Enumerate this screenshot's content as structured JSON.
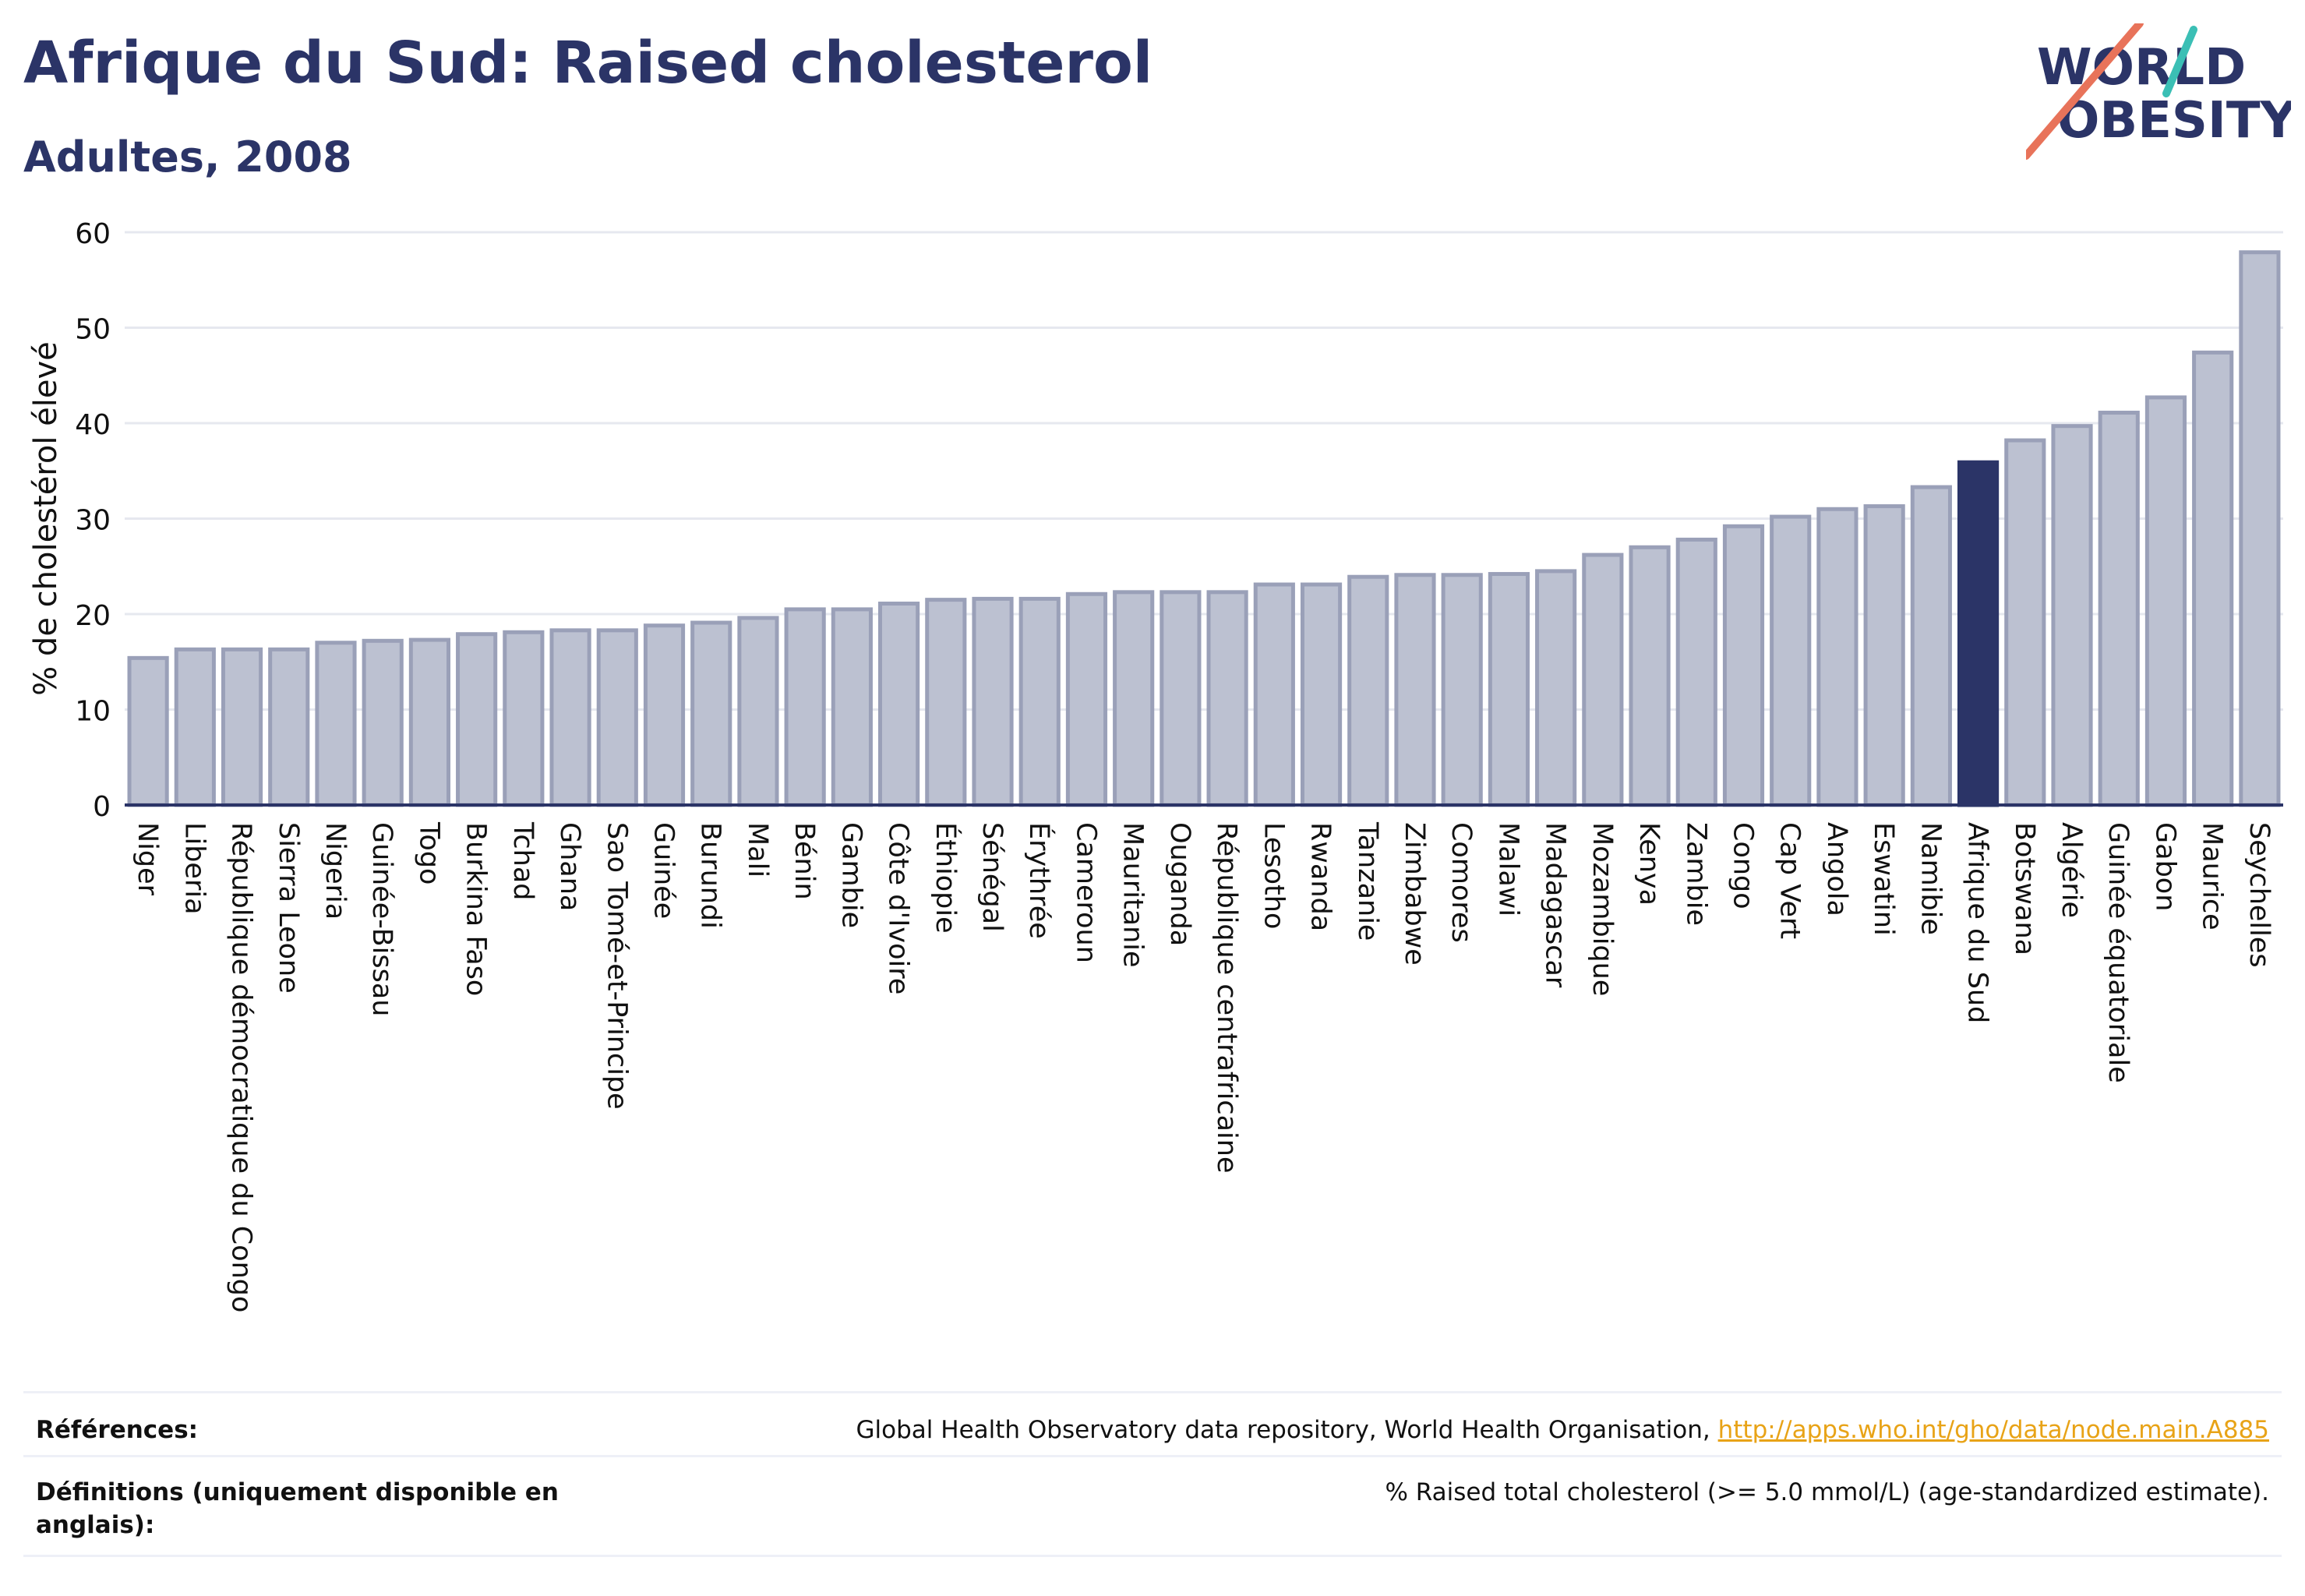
{
  "header": {
    "title": "Afrique du Sud: Raised cholesterol",
    "subtitle": "Adultes, 2008"
  },
  "logo": {
    "line1": "WORLD",
    "line2": "OBESITY"
  },
  "chart_data": {
    "type": "bar",
    "ylabel": "% de cholestérol élevé",
    "xlabel": "",
    "ylim": [
      0,
      60
    ],
    "yticks": [
      0,
      10,
      20,
      30,
      40,
      50,
      60
    ],
    "grid": true,
    "highlight": "Afrique du Sud",
    "colors": {
      "bar": "#bcc1d1",
      "bar_border": "#9aa0b8",
      "highlight": "#2b3467",
      "axis": "#2b3467",
      "grid": "#e6e8ef"
    },
    "categories": [
      "Niger",
      "Liberia",
      "République démocratique du Congo",
      "Sierra Leone",
      "Nigeria",
      "Guinée-Bissau",
      "Togo",
      "Burkina Faso",
      "Tchad",
      "Ghana",
      "Sao Tomé-et-Principe",
      "Guinée",
      "Burundi",
      "Mali",
      "Bénin",
      "Gambie",
      "Côte d'Ivoire",
      "Éthiopie",
      "Sénégal",
      "Érythrée",
      "Cameroun",
      "Mauritanie",
      "Ouganda",
      "République centrafricaine",
      "Lesotho",
      "Rwanda",
      "Tanzanie",
      "Zimbabwe",
      "Comores",
      "Malawi",
      "Madagascar",
      "Mozambique",
      "Kenya",
      "Zambie",
      "Congo",
      "Cap Vert",
      "Angola",
      "Eswatini",
      "Namibie",
      "Afrique du Sud",
      "Botswana",
      "Algérie",
      "Guinée équatoriale",
      "Gabon",
      "Maurice",
      "Seychelles"
    ],
    "values": [
      15.4,
      16.3,
      16.3,
      16.3,
      17.0,
      17.2,
      17.3,
      17.9,
      18.1,
      18.3,
      18.3,
      18.8,
      19.1,
      19.6,
      20.5,
      20.5,
      21.1,
      21.5,
      21.6,
      21.6,
      22.1,
      22.3,
      22.3,
      22.3,
      23.1,
      23.1,
      23.9,
      24.1,
      24.1,
      24.2,
      24.5,
      26.2,
      27.0,
      27.8,
      29.2,
      30.2,
      31.0,
      31.3,
      33.3,
      35.9,
      38.2,
      39.7,
      41.1,
      42.7,
      47.4,
      57.9
    ]
  },
  "footer": {
    "references_label": "Références:",
    "references_text": "Global Health Observatory data repository, World Health Organisation, ",
    "references_link": "http://apps.who.int/gho/data/node.main.A885",
    "definitions_label": "Définitions (uniquement disponible en anglais):",
    "definitions_text": "% Raised total cholesterol (>= 5.0 mmol/L) (age-standardized estimate)."
  }
}
